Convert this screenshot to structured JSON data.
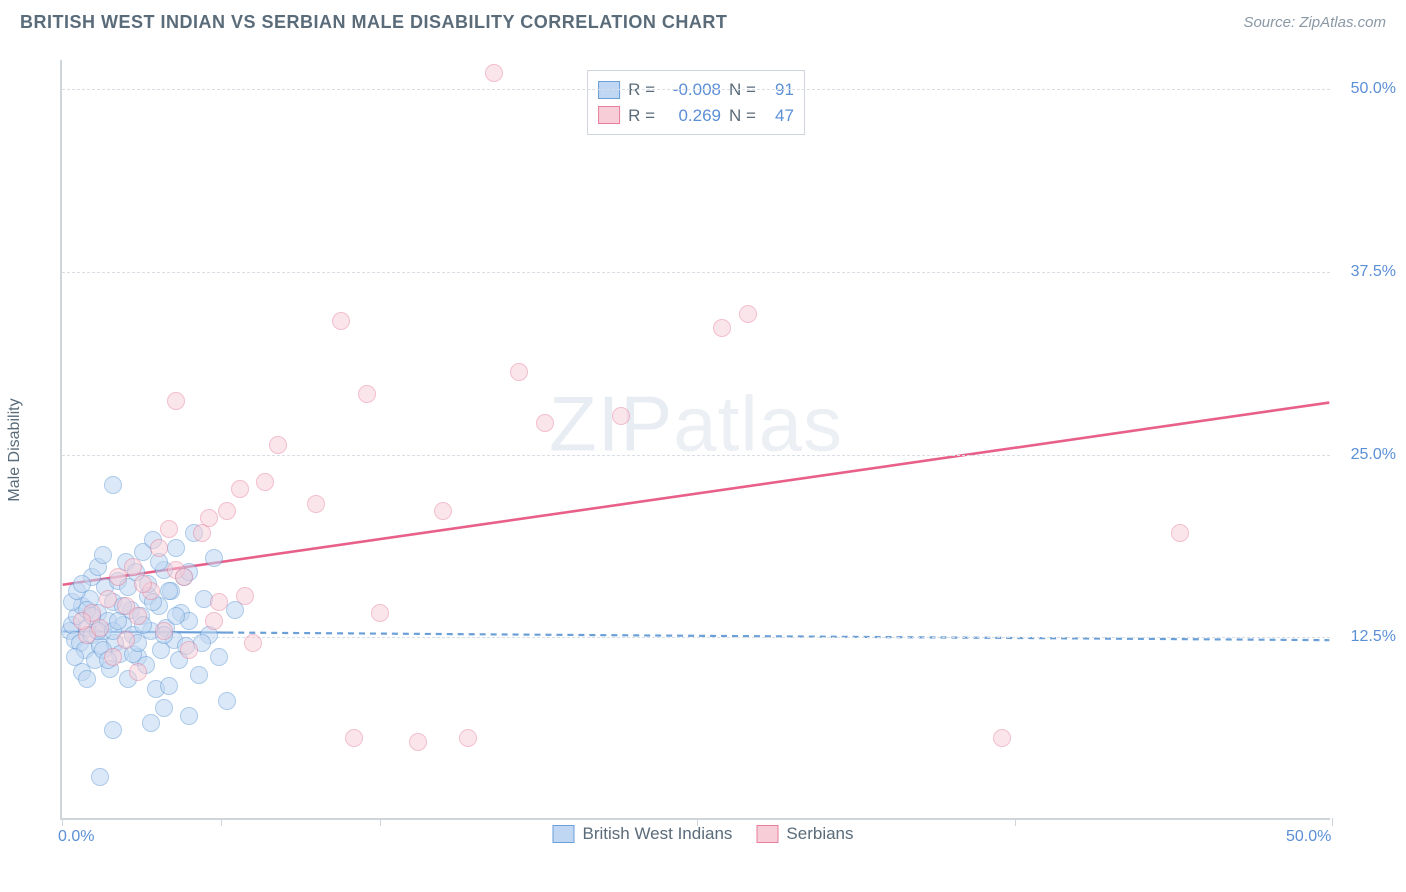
{
  "header": {
    "title": "BRITISH WEST INDIAN VS SERBIAN MALE DISABILITY CORRELATION CHART",
    "source": "Source: ZipAtlas.com"
  },
  "watermark": {
    "textA": "ZIP",
    "textB": "atlas"
  },
  "chart": {
    "type": "scatter",
    "y_axis_label": "Male Disability",
    "background_color": "#ffffff",
    "grid_color": "#d8dee3",
    "axis_color": "#cfd6db",
    "tick_label_color": "#5b8fd6",
    "tick_label_fontsize": 16,
    "xlim": [
      0,
      50
    ],
    "ylim": [
      0,
      52
    ],
    "x_ticks": [
      0,
      6.25,
      12.5,
      25,
      37.5,
      50
    ],
    "x_tick_labels": {
      "0": "0.0%",
      "50": "50.0%"
    },
    "y_gridlines": [
      12.5,
      25,
      37.5,
      50
    ],
    "y_tick_labels": {
      "12.5": "12.5%",
      "25": "25.0%",
      "37.5": "37.5%",
      "50": "50.0%"
    },
    "point_radius": 9,
    "point_stroke_width": 1.5,
    "series": [
      {
        "name": "British West Indians",
        "fill": "#bfd7f2",
        "stroke": "#6a9fd8",
        "fill_opacity": 0.55,
        "trend": {
          "y_at_x0": 12.8,
          "y_at_xmax": 12.2,
          "stroke": "#6a9fd8",
          "stroke_width": 2.2,
          "solid_until_x": 6.5,
          "dash": "6,5"
        },
        "R": "-0.008",
        "N": "91",
        "points": [
          [
            0.3,
            12.8
          ],
          [
            0.4,
            13.2
          ],
          [
            0.5,
            12.2
          ],
          [
            0.6,
            13.8
          ],
          [
            0.7,
            12.0
          ],
          [
            0.8,
            14.5
          ],
          [
            0.9,
            11.5
          ],
          [
            1.0,
            13.0
          ],
          [
            1.1,
            15.0
          ],
          [
            1.2,
            12.5
          ],
          [
            1.3,
            10.8
          ],
          [
            1.4,
            14.0
          ],
          [
            1.5,
            11.8
          ],
          [
            1.6,
            12.8
          ],
          [
            1.7,
            15.8
          ],
          [
            1.8,
            13.5
          ],
          [
            1.9,
            10.2
          ],
          [
            2.0,
            14.8
          ],
          [
            2.1,
            12.0
          ],
          [
            2.2,
            16.2
          ],
          [
            2.3,
            11.2
          ],
          [
            2.4,
            13.2
          ],
          [
            2.5,
            17.5
          ],
          [
            2.6,
            9.5
          ],
          [
            2.7,
            14.2
          ],
          [
            2.8,
            12.5
          ],
          [
            2.9,
            16.8
          ],
          [
            3.0,
            11.0
          ],
          [
            3.1,
            13.8
          ],
          [
            3.2,
            18.2
          ],
          [
            3.3,
            10.5
          ],
          [
            3.4,
            15.2
          ],
          [
            3.5,
            12.8
          ],
          [
            3.6,
            19.0
          ],
          [
            3.7,
            8.8
          ],
          [
            3.8,
            14.5
          ],
          [
            3.9,
            11.5
          ],
          [
            4.0,
            17.0
          ],
          [
            4.1,
            13.0
          ],
          [
            4.2,
            9.0
          ],
          [
            4.3,
            15.5
          ],
          [
            4.4,
            12.2
          ],
          [
            4.5,
            18.5
          ],
          [
            4.6,
            10.8
          ],
          [
            4.7,
            14.0
          ],
          [
            4.8,
            16.5
          ],
          [
            4.9,
            11.8
          ],
          [
            5.0,
            13.5
          ],
          [
            5.2,
            19.5
          ],
          [
            5.4,
            9.8
          ],
          [
            5.6,
            15.0
          ],
          [
            5.8,
            12.5
          ],
          [
            6.0,
            17.8
          ],
          [
            6.2,
            11.0
          ],
          [
            6.5,
            8.0
          ],
          [
            6.8,
            14.2
          ],
          [
            2.0,
            22.8
          ],
          [
            3.5,
            6.5
          ],
          [
            4.0,
            7.5
          ],
          [
            5.0,
            7.0
          ],
          [
            1.5,
            2.8
          ],
          [
            2.0,
            6.0
          ],
          [
            0.5,
            11.0
          ],
          [
            0.8,
            10.0
          ],
          [
            1.0,
            9.5
          ],
          [
            1.2,
            16.5
          ],
          [
            1.4,
            17.2
          ],
          [
            1.6,
            18.0
          ],
          [
            0.4,
            14.8
          ],
          [
            0.6,
            15.5
          ],
          [
            0.8,
            16.0
          ],
          [
            1.0,
            14.2
          ],
          [
            1.2,
            13.8
          ],
          [
            1.4,
            12.8
          ],
          [
            1.6,
            11.5
          ],
          [
            1.8,
            10.8
          ],
          [
            2.0,
            12.8
          ],
          [
            2.2,
            13.5
          ],
          [
            2.4,
            14.5
          ],
          [
            2.6,
            15.8
          ],
          [
            2.8,
            11.2
          ],
          [
            3.0,
            12.0
          ],
          [
            3.2,
            13.2
          ],
          [
            3.4,
            16.0
          ],
          [
            3.6,
            14.8
          ],
          [
            3.8,
            17.5
          ],
          [
            4.0,
            12.5
          ],
          [
            4.2,
            15.5
          ],
          [
            4.5,
            13.8
          ],
          [
            5.0,
            16.8
          ],
          [
            5.5,
            12.0
          ]
        ]
      },
      {
        "name": "Serbians",
        "fill": "#f7cdd7",
        "stroke": "#e77f9c",
        "fill_opacity": 0.5,
        "trend": {
          "y_at_x0": 16.0,
          "y_at_xmax": 28.5,
          "stroke": "#e8608a",
          "stroke_width": 2.6,
          "solid_until_x": 50,
          "dash": null
        },
        "R": "0.269",
        "N": "47",
        "points": [
          [
            1.0,
            12.5
          ],
          [
            1.5,
            13.0
          ],
          [
            2.0,
            11.0
          ],
          [
            2.5,
            14.5
          ],
          [
            3.0,
            10.0
          ],
          [
            3.5,
            15.5
          ],
          [
            4.0,
            12.8
          ],
          [
            4.5,
            17.0
          ],
          [
            5.0,
            11.5
          ],
          [
            5.5,
            19.5
          ],
          [
            6.0,
            13.5
          ],
          [
            6.5,
            21.0
          ],
          [
            7.0,
            22.5
          ],
          [
            7.5,
            12.0
          ],
          [
            8.0,
            23.0
          ],
          [
            8.5,
            25.5
          ],
          [
            10.0,
            21.5
          ],
          [
            11.0,
            34.0
          ],
          [
            12.0,
            29.0
          ],
          [
            11.5,
            5.5
          ],
          [
            12.5,
            14.0
          ],
          [
            14.0,
            5.2
          ],
          [
            15.0,
            21.0
          ],
          [
            16.0,
            5.5
          ],
          [
            17.0,
            51.0
          ],
          [
            18.0,
            30.5
          ],
          [
            19.0,
            27.0
          ],
          [
            22.0,
            27.5
          ],
          [
            26.0,
            33.5
          ],
          [
            27.0,
            34.5
          ],
          [
            37.0,
            5.5
          ],
          [
            44.0,
            19.5
          ],
          [
            4.5,
            28.5
          ],
          [
            3.8,
            18.5
          ],
          [
            4.2,
            19.8
          ],
          [
            2.8,
            17.2
          ],
          [
            3.2,
            16.0
          ],
          [
            1.8,
            15.0
          ],
          [
            2.2,
            16.5
          ],
          [
            1.2,
            14.0
          ],
          [
            0.8,
            13.5
          ],
          [
            5.8,
            20.5
          ],
          [
            6.2,
            14.8
          ],
          [
            7.2,
            15.2
          ],
          [
            4.8,
            16.5
          ],
          [
            3.0,
            13.8
          ],
          [
            2.5,
            12.2
          ]
        ]
      }
    ],
    "stats_legend": {
      "label_R": "R =",
      "label_N": "N ="
    },
    "bottom_legend": {
      "items": [
        "British West Indians",
        "Serbians"
      ]
    }
  }
}
